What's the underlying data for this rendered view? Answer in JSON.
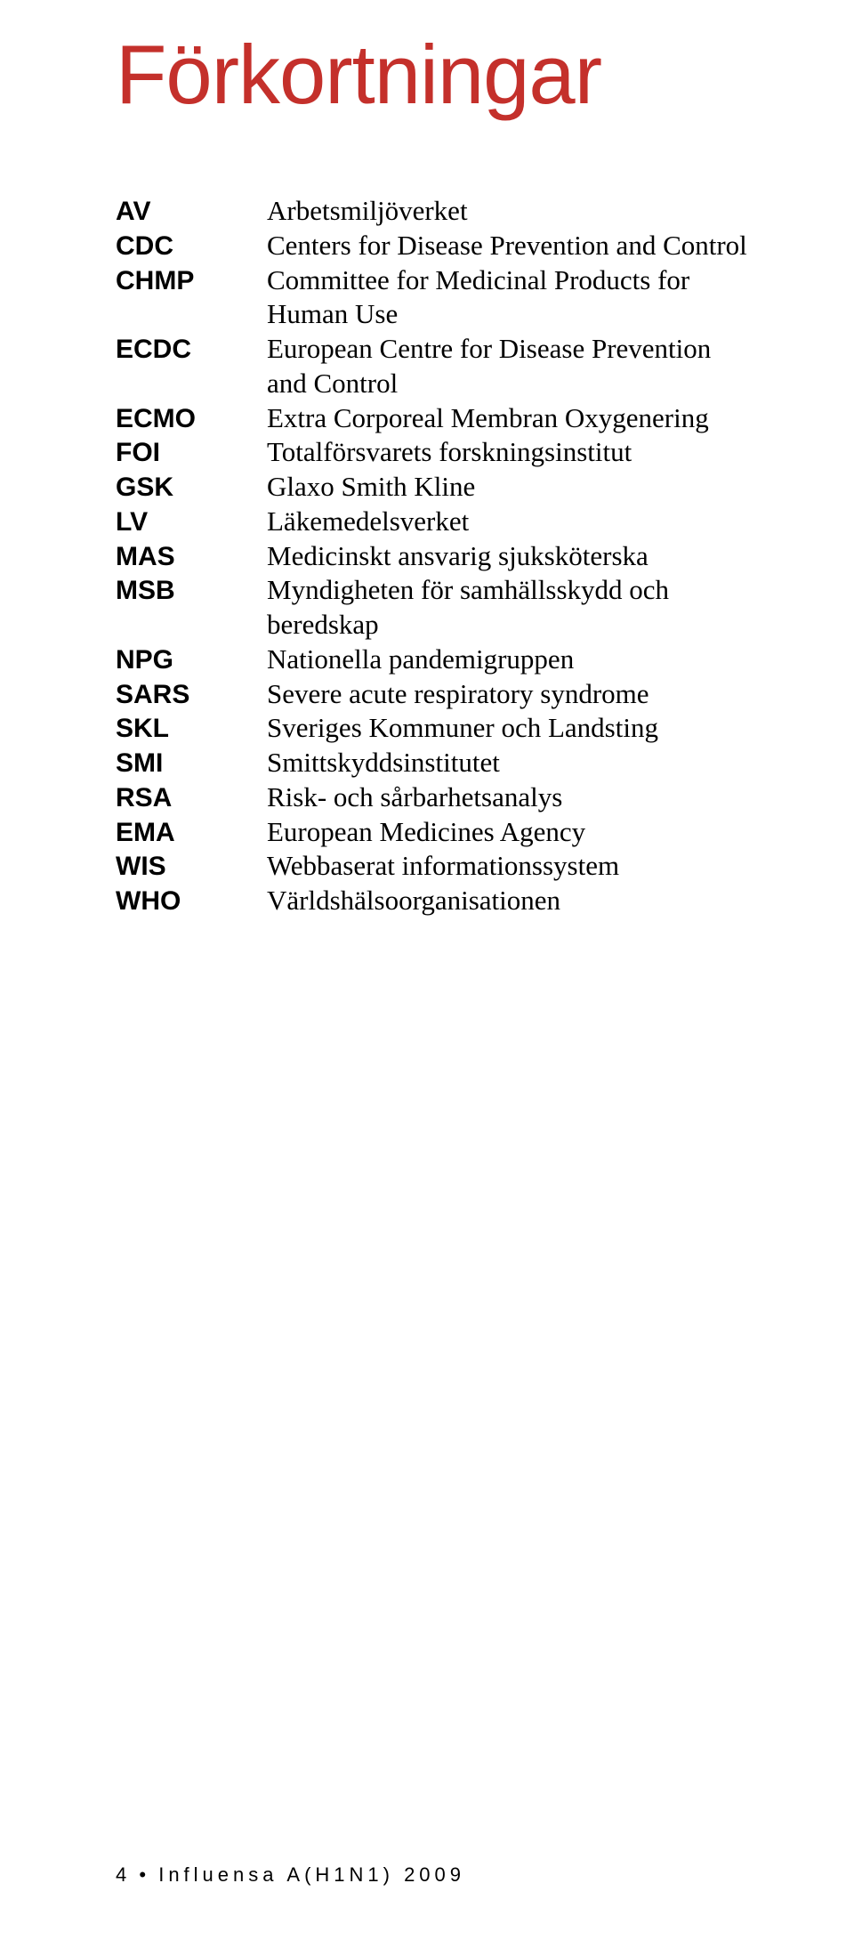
{
  "title": "Förkortningar",
  "title_color": "#c4302b",
  "body_color": "#000000",
  "background_color": "#ffffff",
  "abbreviations": [
    {
      "abbr": "AV",
      "def": "Arbetsmiljöverket"
    },
    {
      "abbr": "CDC",
      "def": "Centers for Disease Prevention and Control"
    },
    {
      "abbr": "CHMP",
      "def": "Committee for Medicinal Products for Human Use"
    },
    {
      "abbr": "ECDC",
      "def": "European Centre for Disease Prevention and Control"
    },
    {
      "abbr": "ECMO",
      "def": "Extra Corporeal Membran Oxygenering"
    },
    {
      "abbr": "FOI",
      "def": "Totalförsvarets forskningsinstitut"
    },
    {
      "abbr": "GSK",
      "def": "Glaxo Smith Kline"
    },
    {
      "abbr": "LV",
      "def": "Läkemedelsverket"
    },
    {
      "abbr": "MAS",
      "def": "Medicinskt ansvarig sjuksköterska"
    },
    {
      "abbr": "MSB",
      "def": "Myndigheten för samhällsskydd och beredskap"
    },
    {
      "abbr": "NPG",
      "def": "Nationella pandemigruppen"
    },
    {
      "abbr": "SARS",
      "def": "Severe acute respiratory syndrome"
    },
    {
      "abbr": "SKL",
      "def": "Sveriges Kommuner och Landsting"
    },
    {
      "abbr": "SMI",
      "def": "Smittskyddsinstitutet"
    },
    {
      "abbr": "RSA",
      "def": "Risk- och sårbarhetsanalys"
    },
    {
      "abbr": "EMA",
      "def": "European Medicines Agency"
    },
    {
      "abbr": "WIS",
      "def": "Webbaserat informationssystem"
    },
    {
      "abbr": "WHO",
      "def": "Världshälsoorganisationen"
    }
  ],
  "footer": {
    "page_number": "4",
    "separator": "•",
    "book_title": "Influensa A(H1N1) 2009"
  }
}
